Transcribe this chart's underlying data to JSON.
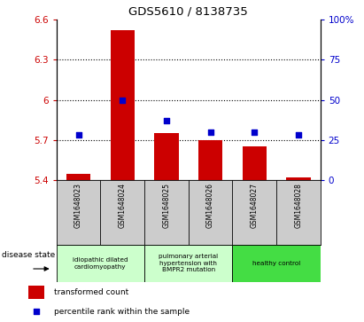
{
  "title": "GDS5610 / 8138735",
  "samples": [
    "GSM1648023",
    "GSM1648024",
    "GSM1648025",
    "GSM1648026",
    "GSM1648027",
    "GSM1648028"
  ],
  "bar_values": [
    5.45,
    6.52,
    5.75,
    5.7,
    5.65,
    5.42
  ],
  "dot_values": [
    28,
    50,
    37,
    30,
    30,
    28
  ],
  "ylim_left": [
    5.4,
    6.6
  ],
  "ylim_right": [
    0,
    100
  ],
  "yticks_left": [
    5.4,
    5.7,
    6.0,
    6.3,
    6.6
  ],
  "ytick_labels_left": [
    "5.4",
    "5.7",
    "6",
    "6.3",
    "6.6"
  ],
  "yticks_right": [
    0,
    25,
    50,
    75,
    100
  ],
  "ytick_labels_right": [
    "0",
    "25",
    "50",
    "75",
    "100%"
  ],
  "hlines": [
    5.7,
    6.0,
    6.3
  ],
  "bar_color": "#cc0000",
  "dot_color": "#0000cc",
  "bar_width": 0.55,
  "group_labels": [
    "idiopathic dilated\ncardiomyopathy",
    "pulmonary arterial\nhypertension with\nBMPR2 mutation",
    "healthy control"
  ],
  "group_colors": [
    "#ccffcc",
    "#ccffcc",
    "#44dd44"
  ],
  "group_ranges": [
    [
      0,
      2
    ],
    [
      2,
      4
    ],
    [
      4,
      6
    ]
  ],
  "legend_bar_label": "transformed count",
  "legend_dot_label": "percentile rank within the sample",
  "disease_state_label": "disease state",
  "bar_color_hex": "#cc0000",
  "dot_color_hex": "#0000cc",
  "left_tick_color": "#cc0000",
  "right_tick_color": "#0000cc",
  "sample_bg_color": "#cccccc",
  "cell_border_color": "#888888"
}
